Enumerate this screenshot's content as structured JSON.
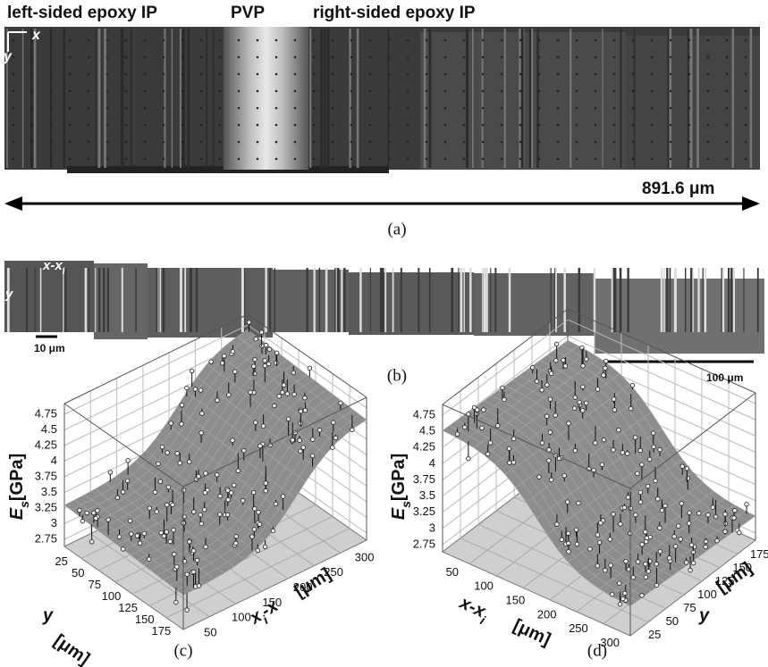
{
  "panel_a": {
    "labels": [
      "left-sided epoxy IP",
      "PVP",
      "right-sided epoxy IP"
    ],
    "axis_x": "x",
    "axis_y": "y",
    "scale_label": "891.6 μm",
    "caption": "(a)"
  },
  "panel_b": {
    "axis_x": "x-x",
    "axis_x_sub": "i",
    "axis_y": "y",
    "scale_small": "10 μm",
    "scale_large": "100 μm",
    "caption": "(b)"
  },
  "panel_c": {
    "z_label": "E",
    "z_label_sub": "s",
    "z_unit": "[GPa]",
    "zticks": [
      2.75,
      3,
      3.25,
      3.5,
      3.75,
      4,
      4.25,
      4.5,
      4.75
    ],
    "y_label": "y",
    "y_unit": "[μm]",
    "yticks": [
      25,
      50,
      75,
      100,
      125,
      150,
      175
    ],
    "x_label": "x",
    "x_label_sub": "i",
    "x_label_rest": "-x",
    "x_unit": "[μm]",
    "xticks": [
      300,
      250,
      200,
      150,
      100,
      50
    ],
    "caption": "(c)"
  },
  "panel_d": {
    "z_label": "E",
    "z_label_sub": "s",
    "z_unit": "[GPa]",
    "zticks": [
      2.75,
      3,
      3.25,
      3.5,
      3.75,
      4,
      4.25,
      4.5,
      4.75
    ],
    "x_label": "x-x",
    "x_label_sub": "i",
    "x_unit": "[μm]",
    "xticks": [
      50,
      100,
      150,
      200,
      250,
      300
    ],
    "y_label": "y",
    "y_unit": "[μm]",
    "yticks": [
      25,
      50,
      75,
      100,
      125,
      150,
      175
    ],
    "caption": "(d)"
  }
}
